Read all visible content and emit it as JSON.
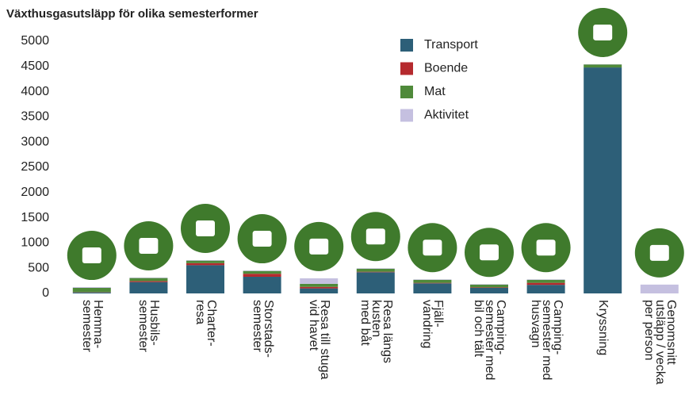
{
  "chart_data": {
    "type": "stacked_bar",
    "title": "Växthusgasutsläpp för olika semesterformer",
    "categories": [
      "Hemma-\nsemester",
      "Husbils-\nsemester",
      "Charter-\nresa",
      "Storstads-\nsemester",
      "Resa till stuga\nvid havet",
      "Resa längs\nkusten\nmed båt",
      "Fjäll-\nvandring",
      "Camping-\nsemester med\nbil och tält",
      "Camping-\nsemester med\nhusvagn",
      "Kryssning",
      "Genomsnitt\nutsläpp / vecka\nper person"
    ],
    "series": [
      {
        "name": "Transport",
        "color": "#2d5f78",
        "values": [
          20,
          225,
          560,
          330,
          100,
          420,
          200,
          110,
          170,
          4480,
          0
        ]
      },
      {
        "name": "Boende",
        "color": "#b52a2e",
        "values": [
          5,
          20,
          40,
          60,
          30,
          10,
          10,
          10,
          40,
          0,
          0
        ]
      },
      {
        "name": "Mat",
        "color": "#4f8a3a",
        "values": [
          85,
          60,
          50,
          55,
          60,
          60,
          60,
          55,
          60,
          60,
          0
        ]
      },
      {
        "name": "Aktivitet",
        "color": "#c5c0e0",
        "values": [
          15,
          10,
          10,
          10,
          110,
          10,
          10,
          10,
          10,
          5,
          175
        ]
      }
    ],
    "ylim": [
      0,
      5000
    ],
    "yticks": [
      0,
      500,
      1000,
      1500,
      2000,
      2500,
      3000,
      3500,
      4000,
      4500,
      5000
    ]
  }
}
